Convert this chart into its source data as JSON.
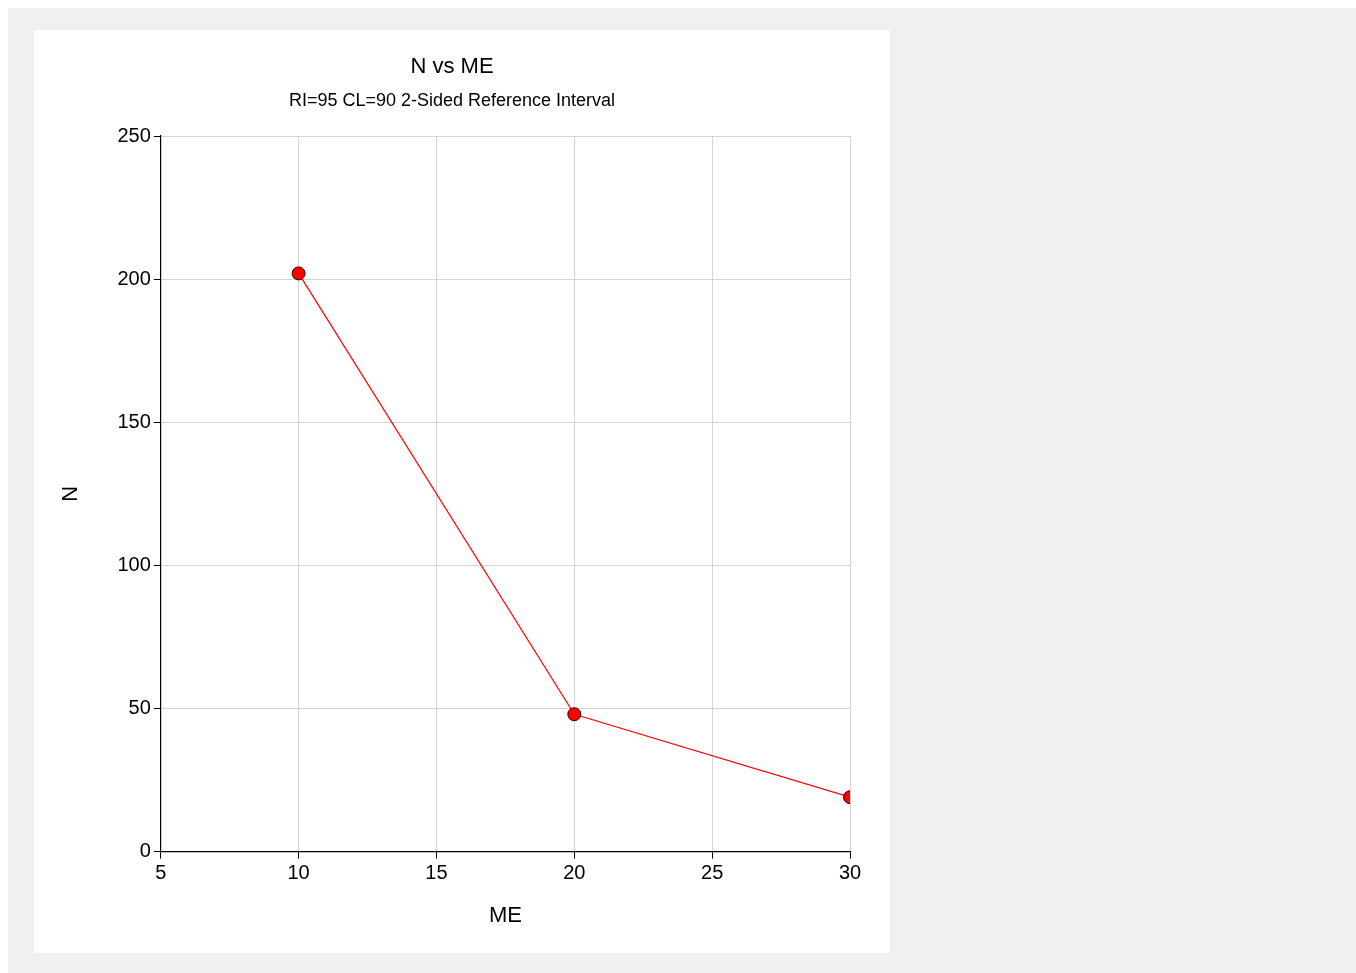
{
  "chart_data": {
    "type": "line",
    "title": "N vs ME",
    "subtitle": "RI=95 CL=90 2-Sided Reference Interval",
    "xlabel": "ME",
    "ylabel": "N",
    "x": [
      10,
      20,
      30
    ],
    "series": [
      {
        "color": "#ff0000",
        "values": [
          202,
          48,
          19
        ]
      }
    ],
    "xlim": [
      5,
      30
    ],
    "xticks": [
      5,
      10,
      15,
      20,
      25,
      30
    ],
    "ylim": [
      0,
      250
    ],
    "yticks": [
      0,
      50,
      100,
      150,
      200,
      250
    ],
    "grid": true,
    "legend": false,
    "marker": "circle",
    "line_style": "solid"
  }
}
